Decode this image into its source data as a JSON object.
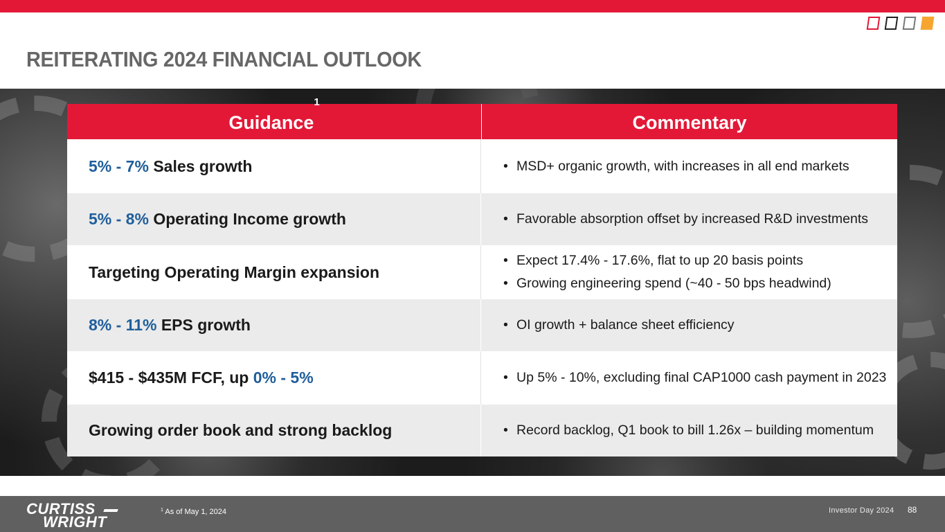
{
  "slide": {
    "title": "REITERATING 2024 FINANCIAL OUTLOOK",
    "brand_colors": {
      "red": "#e31837",
      "blue": "#1f5e9b",
      "orange": "#f6a531",
      "gray_title": "#676767",
      "footer": "#606060"
    }
  },
  "table": {
    "header": {
      "guidance": "Guidance",
      "guidance_sup": "1",
      "commentary": "Commentary"
    },
    "rows": [
      {
        "guidance_highlight": "5% - 7%",
        "guidance_text": " Sales growth",
        "bullets": [
          "MSD+ organic growth, with increases in all end markets"
        ]
      },
      {
        "guidance_highlight": "5% - 8%",
        "guidance_text": " Operating Income growth",
        "bullets": [
          "Favorable absorption offset by increased R&D investments"
        ]
      },
      {
        "guidance_text": "Targeting Operating Margin expansion",
        "bullets": [
          "Expect 17.4% - 17.6%, flat to up 20 basis points",
          "Growing engineering spend (~40 - 50 bps headwind)"
        ]
      },
      {
        "guidance_highlight": "8% - 11%",
        "guidance_text": " EPS growth",
        "bullets": [
          "OI growth + balance sheet efficiency"
        ]
      },
      {
        "guidance_text": "$415 - $435M FCF, up ",
        "guidance_highlight_after": "0% - 5%",
        "bullets": [
          "Up 5% - 10%, excluding final CAP1000 cash payment in 2023"
        ]
      },
      {
        "guidance_text": "Growing order book and strong backlog",
        "bullets": [
          "Record backlog, Q1 book to bill 1.26x – building momentum"
        ]
      }
    ]
  },
  "footer": {
    "logo_line1": "CURTISS",
    "logo_line2": "WRIGHT",
    "footnote_sup": "1",
    "footnote": " As of May 1, 2024",
    "event": "Investor Day 2024",
    "page_number": "88"
  },
  "bullet_char": "•"
}
